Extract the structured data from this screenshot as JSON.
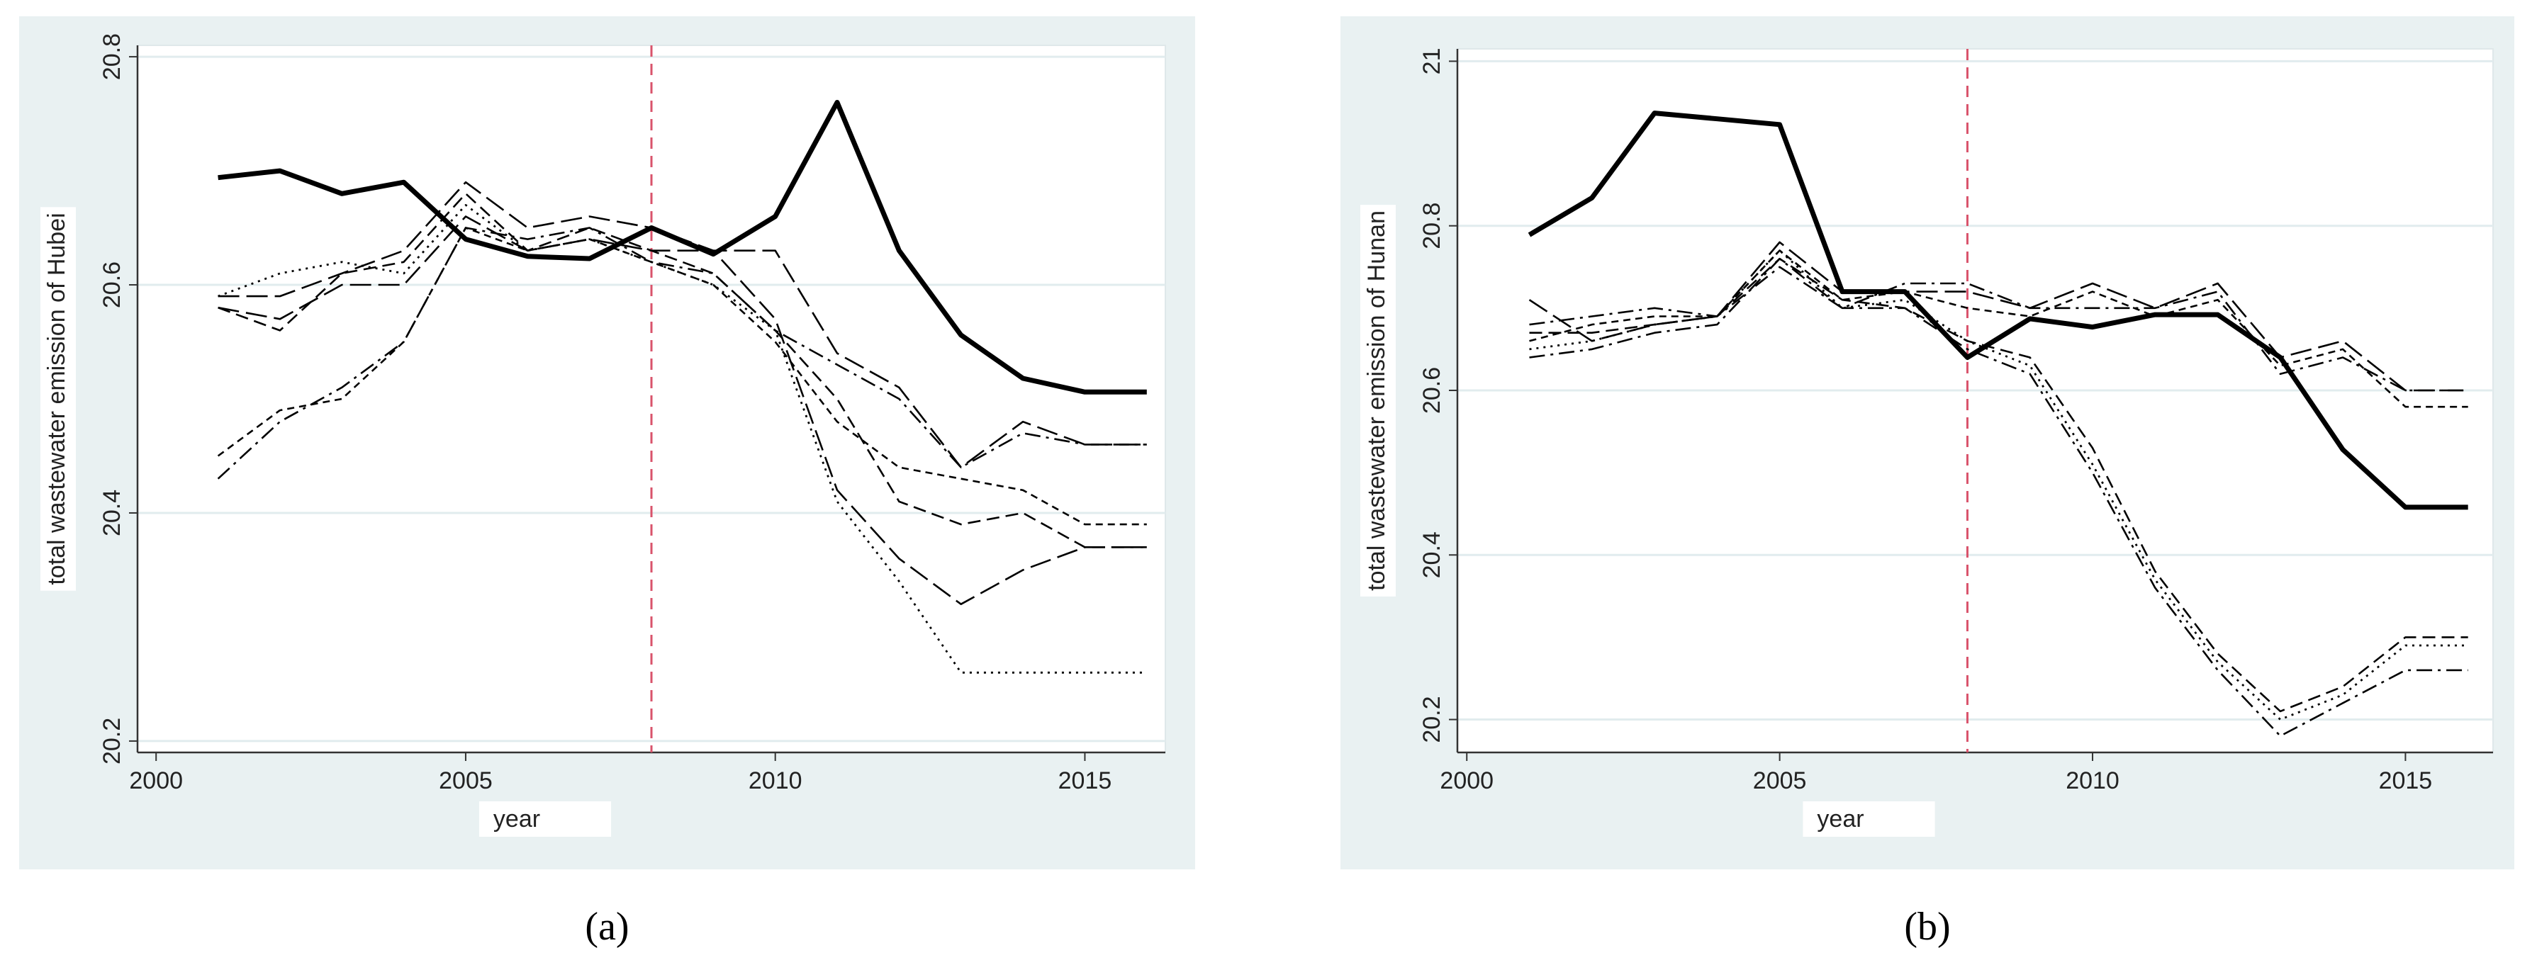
{
  "chart_data": [
    {
      "type": "line",
      "caption": "(a)",
      "xlabel": "year",
      "ylabel": "total  wastewater emission of Hubei",
      "x": [
        2001,
        2002,
        2003,
        2004,
        2005,
        2006,
        2007,
        2008,
        2009,
        2010,
        2011,
        2012,
        2013,
        2014,
        2015,
        2016
      ],
      "xlim": [
        1999.7,
        2016.3
      ],
      "xticks": [
        2000,
        2005,
        2010,
        2015
      ],
      "ylim": [
        20.19,
        20.81
      ],
      "yticks": [
        20.2,
        20.4,
        20.6,
        20.8
      ],
      "grid": true,
      "vline": 2008,
      "vline_color": "#d9536b",
      "series": [
        {
          "color": "#000000",
          "style": "thick",
          "values": [
            20.694,
            20.7,
            20.68,
            20.69,
            20.64,
            20.625,
            20.623,
            20.65,
            20.627,
            20.66,
            20.76,
            20.63,
            20.556,
            20.518,
            20.506,
            20.506
          ]
        },
        {
          "color": "#000000",
          "style": "longdash",
          "values": [
            20.58,
            20.57,
            20.6,
            20.6,
            20.66,
            20.63,
            20.64,
            20.63,
            20.63,
            20.63,
            20.54,
            20.51,
            20.44,
            20.48,
            20.46,
            20.46
          ]
        },
        {
          "color": "#000000",
          "style": "dashdot",
          "values": [
            20.43,
            20.48,
            20.51,
            20.55,
            20.65,
            20.64,
            20.65,
            20.62,
            20.61,
            20.56,
            20.53,
            20.5,
            20.44,
            20.47,
            20.46,
            20.46
          ]
        },
        {
          "color": "#000000",
          "style": "shortdash",
          "values": [
            20.45,
            20.49,
            20.5,
            20.55,
            20.65,
            20.63,
            20.64,
            20.62,
            20.6,
            20.55,
            20.48,
            20.44,
            20.43,
            20.42,
            20.39,
            20.39
          ]
        },
        {
          "color": "#000000",
          "style": "dot",
          "values": [
            20.59,
            20.61,
            20.62,
            20.61,
            20.67,
            20.63,
            20.64,
            20.62,
            20.6,
            20.56,
            20.41,
            20.34,
            20.26,
            20.26,
            20.26,
            20.26
          ]
        },
        {
          "color": "#000000",
          "style": "longdash",
          "values": [
            20.59,
            20.59,
            20.61,
            20.63,
            20.69,
            20.65,
            20.66,
            20.65,
            20.63,
            20.57,
            20.42,
            20.36,
            20.32,
            20.35,
            20.37,
            20.37
          ]
        },
        {
          "color": "#000000",
          "style": "dash",
          "values": [
            20.58,
            20.56,
            20.61,
            20.62,
            20.68,
            20.63,
            20.65,
            20.63,
            20.61,
            20.56,
            20.5,
            20.41,
            20.39,
            20.4,
            20.37,
            20.37
          ]
        }
      ]
    },
    {
      "type": "line",
      "caption": "(b)",
      "xlabel": "year",
      "ylabel": "total  wastewater emission of Hunan",
      "x": [
        2001,
        2002,
        2003,
        2004,
        2005,
        2006,
        2007,
        2008,
        2009,
        2010,
        2011,
        2012,
        2013,
        2014,
        2015,
        2016
      ],
      "xlim": [
        1999.85,
        2016.4
      ],
      "xticks": [
        2000,
        2005,
        2010,
        2015
      ],
      "ylim": [
        20.16,
        21.015
      ],
      "yticks": [
        20.2,
        20.4,
        20.6,
        20.8,
        21
      ],
      "grid": true,
      "vline": 2008,
      "vline_color": "#d9536b",
      "series": [
        {
          "color": "#000000",
          "style": "thick",
          "values": [
            20.789,
            20.834,
            20.937,
            20.93,
            20.923,
            20.72,
            20.72,
            20.64,
            20.687,
            20.677,
            20.692,
            20.692,
            20.64,
            20.528,
            20.458,
            20.458
          ]
        },
        {
          "color": "#000000",
          "style": "longdash",
          "values": [
            20.71,
            20.66,
            20.68,
            20.69,
            20.78,
            20.72,
            20.72,
            20.72,
            20.7,
            20.73,
            20.7,
            20.73,
            20.64,
            20.66,
            20.6,
            20.6
          ]
        },
        {
          "color": "#000000",
          "style": "shortdash",
          "values": [
            20.66,
            20.68,
            20.69,
            20.69,
            20.77,
            20.71,
            20.72,
            20.7,
            20.69,
            20.72,
            20.69,
            20.71,
            20.63,
            20.65,
            20.58,
            20.58
          ]
        },
        {
          "color": "#000000",
          "style": "dashdot",
          "values": [
            20.68,
            20.69,
            20.7,
            20.69,
            20.75,
            20.7,
            20.73,
            20.73,
            20.7,
            20.7,
            20.7,
            20.72,
            20.62,
            20.64,
            20.6,
            20.6
          ]
        },
        {
          "color": "#000000",
          "style": "dash",
          "values": [
            20.67,
            20.67,
            20.68,
            20.69,
            20.76,
            20.71,
            20.7,
            20.66,
            20.64,
            20.53,
            20.38,
            20.28,
            20.21,
            20.24,
            20.3,
            20.3
          ]
        },
        {
          "color": "#000000",
          "style": "dashdot",
          "values": [
            20.64,
            20.65,
            20.67,
            20.68,
            20.76,
            20.7,
            20.7,
            20.65,
            20.62,
            20.5,
            20.36,
            20.26,
            20.18,
            20.22,
            20.26,
            20.26
          ]
        },
        {
          "color": "#000000",
          "style": "dot",
          "values": [
            20.65,
            20.66,
            20.68,
            20.69,
            20.77,
            20.7,
            20.71,
            20.66,
            20.63,
            20.51,
            20.37,
            20.27,
            20.2,
            20.23,
            20.29,
            20.29
          ]
        }
      ]
    }
  ]
}
